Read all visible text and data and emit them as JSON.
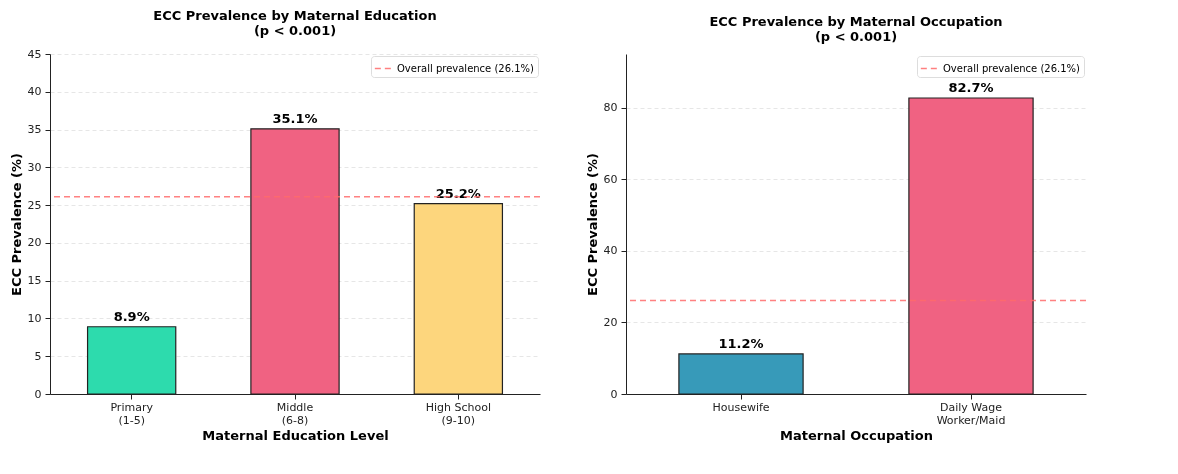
{
  "chart_data": [
    {
      "type": "bar",
      "title": "ECC Prevalence by Maternal Education\n(p < 0.001)",
      "xlabel": "Maternal Education Level",
      "ylabel": "ECC Prevalence (%)",
      "categories": [
        "Primary\n(1-5)",
        "Middle\n(6-8)",
        "High School\n(9-10)"
      ],
      "values": [
        8.9,
        35.1,
        25.2
      ],
      "colors": [
        "#2ddbad",
        "#f06282",
        "#fdd67d"
      ],
      "value_labels": [
        "8.9%",
        "35.1%",
        "25.2%"
      ],
      "ylim": [
        0,
        45
      ],
      "yticks": [
        0,
        5,
        10,
        15,
        20,
        25,
        30,
        35,
        40,
        45
      ],
      "grid": "y",
      "legend": "top right",
      "ref_lines": [
        {
          "axis": "y",
          "value": 26.1,
          "label": "Overall prevalence (26.1%)",
          "color": "#ff6b6b",
          "line_style": "dashed"
        }
      ]
    },
    {
      "type": "bar",
      "title": "ECC Prevalence by Maternal Occupation\n(p < 0.001)",
      "xlabel": "Maternal Occupation",
      "ylabel": "ECC Prevalence (%)",
      "categories": [
        "Housewife",
        "Daily Wage\nWorker/Maid"
      ],
      "values": [
        11.2,
        82.7
      ],
      "colors": [
        "#379ab9",
        "#f06282"
      ],
      "value_labels": [
        "11.2%",
        "82.7%"
      ],
      "ylim": [
        0,
        95
      ],
      "yticks": [
        0,
        20,
        40,
        60,
        80
      ],
      "grid": "y",
      "legend": "top right",
      "ref_lines": [
        {
          "axis": "y",
          "value": 26.1,
          "label": "Overall prevalence (26.1%)",
          "color": "#ff6b6b",
          "line_style": "dashed"
        }
      ]
    }
  ]
}
